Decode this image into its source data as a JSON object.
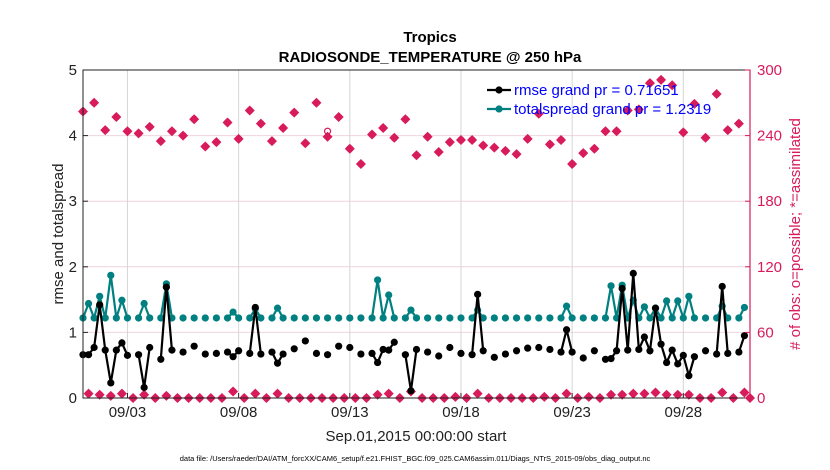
{
  "chart_data": {
    "type": "line",
    "title": "Tropics",
    "subtitle": "RADIOSONDE_TEMPERATURE @ 250 hPa",
    "xlabel": "Sep.01,2015 00:00:00 start",
    "ylabel": "rmse and totalspread",
    "ylabel_right": "# of obs: o=possible; *=assimilated",
    "footer": "data file: /Users/raeder/DAI/ATM_forcXX/CAM6_setup/f.e21.FHIST_BGC.f09_025.CAM6assim.011/Diags_NTrS_2015-09/obs_diag_output.nc",
    "ylim": [
      0,
      5
    ],
    "ylim_right": [
      0,
      300
    ],
    "xlim": [
      "2015-09-01 00:00",
      "2015-10-01 00:00"
    ],
    "yticks": [
      "0",
      "1",
      "2",
      "3",
      "4",
      "5"
    ],
    "yticks_right": [
      "0",
      "60",
      "120",
      "180",
      "240",
      "300"
    ],
    "xticks": [
      {
        "label": "09/03",
        "date": "2015-09-03 00:00"
      },
      {
        "label": "09/08",
        "date": "2015-09-08 00:00"
      },
      {
        "label": "09/13",
        "date": "2015-09-13 00:00"
      },
      {
        "label": "09/18",
        "date": "2015-09-18 00:00"
      },
      {
        "label": "09/23",
        "date": "2015-09-23 00:00"
      },
      {
        "label": "09/28",
        "date": "2015-09-28 00:00"
      }
    ],
    "grid": true,
    "legend_position": "top-right",
    "colors": {
      "rmse": "#000000",
      "totalspread": "#008080",
      "obs": "#d81b5a",
      "legend_text": "#0000ff"
    },
    "x": [
      "09-01 00:00",
      "09-01 06:00",
      "09-01 12:00",
      "09-01 18:00",
      "09-02 00:00",
      "09-02 06:00",
      "09-02 12:00",
      "09-02 18:00",
      "09-03 00:00",
      "09-03 06:00",
      "09-03 12:00",
      "09-03 18:00",
      "09-04 00:00",
      "09-04 06:00",
      "09-04 12:00",
      "09-04 18:00",
      "09-05 00:00",
      "09-05 06:00",
      "09-05 12:00",
      "09-05 18:00",
      "09-06 00:00",
      "09-06 06:00",
      "09-06 12:00",
      "09-06 18:00",
      "09-07 00:00",
      "09-07 06:00",
      "09-07 12:00",
      "09-07 18:00",
      "09-08 00:00",
      "09-08 06:00",
      "09-08 12:00",
      "09-08 18:00",
      "09-09 00:00",
      "09-09 06:00",
      "09-09 12:00",
      "09-09 18:00",
      "09-10 00:00",
      "09-10 06:00",
      "09-10 12:00",
      "09-10 18:00",
      "09-11 00:00",
      "09-11 06:00",
      "09-11 12:00",
      "09-11 18:00",
      "09-12 00:00",
      "09-12 06:00",
      "09-12 12:00",
      "09-12 18:00",
      "09-13 00:00",
      "09-13 06:00",
      "09-13 12:00",
      "09-13 18:00",
      "09-14 00:00",
      "09-14 06:00",
      "09-14 12:00",
      "09-14 18:00",
      "09-15 00:00",
      "09-15 06:00",
      "09-15 12:00",
      "09-15 18:00",
      "09-16 00:00",
      "09-16 06:00",
      "09-16 12:00",
      "09-16 18:00",
      "09-17 00:00",
      "09-17 06:00",
      "09-17 12:00",
      "09-17 18:00",
      "09-18 00:00",
      "09-18 06:00",
      "09-18 12:00",
      "09-18 18:00",
      "09-19 00:00",
      "09-19 06:00",
      "09-19 12:00",
      "09-19 18:00",
      "09-20 00:00",
      "09-20 06:00",
      "09-20 12:00",
      "09-20 18:00",
      "09-21 00:00",
      "09-21 06:00",
      "09-21 12:00",
      "09-21 18:00",
      "09-22 00:00",
      "09-22 06:00",
      "09-22 12:00",
      "09-22 18:00",
      "09-23 00:00",
      "09-23 06:00",
      "09-23 12:00",
      "09-23 18:00",
      "09-24 00:00",
      "09-24 06:00",
      "09-24 12:00",
      "09-24 18:00",
      "09-25 00:00",
      "09-25 06:00",
      "09-25 12:00",
      "09-25 18:00",
      "09-26 00:00",
      "09-26 06:00",
      "09-26 12:00",
      "09-26 18:00",
      "09-27 00:00",
      "09-27 06:00",
      "09-27 12:00",
      "09-27 18:00",
      "09-28 00:00",
      "09-28 06:00",
      "09-28 12:00",
      "09-28 18:00",
      "09-29 00:00",
      "09-29 06:00",
      "09-29 12:00",
      "09-29 18:00",
      "09-30 00:00",
      "09-30 06:00",
      "09-30 12:00",
      "09-30 18:00",
      "10-01 00:00"
    ],
    "series": [
      {
        "name": "rmse grand pr = 0.71651",
        "axis": "left",
        "values": [
          0.66,
          0.66,
          0.77,
          1.42,
          0.73,
          0.23,
          0.73,
          0.84,
          0.65,
          null,
          0.66,
          0.16,
          0.77,
          null,
          0.59,
          1.69,
          0.73,
          null,
          0.7,
          null,
          0.79,
          null,
          0.67,
          null,
          0.68,
          null,
          0.7,
          0.63,
          0.72,
          null,
          0.68,
          1.38,
          0.67,
          null,
          0.7,
          0.53,
          0.67,
          null,
          0.75,
          null,
          0.87,
          null,
          0.68,
          null,
          0.66,
          null,
          0.79,
          null,
          0.77,
          null,
          0.67,
          null,
          0.68,
          0.54,
          0.74,
          0.73,
          0.85,
          null,
          0.66,
          0.11,
          0.74,
          null,
          0.7,
          null,
          0.64,
          null,
          0.77,
          null,
          0.68,
          null,
          0.66,
          1.58,
          0.72,
          null,
          0.62,
          null,
          0.67,
          null,
          0.72,
          null,
          0.76,
          null,
          0.77,
          null,
          0.74,
          null,
          0.7,
          1.04,
          0.7,
          null,
          0.61,
          null,
          0.72,
          null,
          0.59,
          0.6,
          0.72,
          1.67,
          0.73,
          1.9,
          0.74,
          0.93,
          0.72,
          1.37,
          0.82,
          0.54,
          0.73,
          0.52,
          0.65,
          0.34,
          0.63,
          null,
          0.72,
          null,
          0.67,
          1.7,
          0.68,
          null,
          0.7,
          0.95,
          null
        ]
      },
      {
        "name": "totalspread grand pr = 1.2319",
        "axis": "left",
        "values": [
          1.22,
          1.44,
          1.22,
          1.55,
          1.22,
          1.87,
          1.22,
          1.49,
          1.22,
          null,
          1.22,
          1.44,
          1.22,
          null,
          1.22,
          1.74,
          1.22,
          null,
          1.22,
          null,
          1.22,
          null,
          1.22,
          null,
          1.22,
          null,
          1.22,
          1.31,
          1.22,
          null,
          1.22,
          1.36,
          1.22,
          null,
          1.22,
          1.37,
          1.22,
          null,
          1.22,
          null,
          1.22,
          null,
          1.22,
          null,
          1.22,
          null,
          1.22,
          null,
          1.22,
          null,
          1.22,
          null,
          1.22,
          1.8,
          1.22,
          1.57,
          1.22,
          null,
          1.22,
          1.34,
          1.22,
          null,
          1.22,
          null,
          1.22,
          null,
          1.22,
          null,
          1.22,
          null,
          1.22,
          1.34,
          1.22,
          null,
          1.22,
          null,
          1.22,
          null,
          1.22,
          null,
          1.22,
          null,
          1.22,
          null,
          1.22,
          null,
          1.22,
          1.4,
          1.22,
          null,
          1.22,
          null,
          1.22,
          null,
          1.22,
          1.71,
          1.22,
          1.72,
          1.22,
          1.49,
          1.22,
          1.39,
          1.22,
          1.37,
          1.22,
          1.48,
          1.22,
          1.48,
          1.22,
          1.55,
          1.22,
          null,
          1.22,
          null,
          1.22,
          1.4,
          1.22,
          null,
          1.22,
          1.38,
          null
        ]
      },
      {
        "name": "o=possible",
        "axis": "right",
        "values": [
          262,
          4,
          270,
          3,
          245,
          2,
          257,
          4,
          244,
          0,
          242,
          3,
          248,
          0,
          235,
          2,
          244,
          0,
          240,
          0,
          255,
          0,
          230,
          0,
          234,
          0,
          252,
          6,
          237,
          0,
          263,
          4,
          251,
          0,
          235,
          4,
          247,
          0,
          261,
          0,
          233,
          0,
          270,
          0,
          244,
          0,
          257,
          0,
          228,
          0,
          214,
          0,
          241,
          3,
          247,
          4,
          238,
          0,
          255,
          6,
          222,
          0,
          239,
          0,
          225,
          0,
          234,
          1,
          236,
          0,
          236,
          4,
          231,
          0,
          229,
          0,
          226,
          0,
          223,
          0,
          237,
          0,
          260,
          1,
          232,
          0,
          236,
          4,
          214,
          0,
          224,
          1,
          228,
          0,
          244,
          3,
          244,
          3,
          263,
          4,
          264,
          4,
          288,
          5,
          291,
          3,
          286,
          3,
          243,
          3,
          269,
          0,
          238,
          0,
          278,
          5,
          245,
          0,
          251,
          5,
          0
        ]
      },
      {
        "name": "*=assimilated",
        "axis": "right",
        "values": [
          262,
          4,
          270,
          3,
          245,
          2,
          257,
          4,
          244,
          0,
          242,
          3,
          248,
          0,
          235,
          2,
          244,
          0,
          240,
          0,
          255,
          0,
          230,
          0,
          234,
          0,
          252,
          6,
          237,
          0,
          263,
          4,
          251,
          0,
          235,
          4,
          247,
          0,
          261,
          0,
          233,
          0,
          270,
          0,
          239,
          0,
          257,
          0,
          228,
          0,
          214,
          0,
          241,
          3,
          247,
          4,
          238,
          0,
          255,
          6,
          222,
          0,
          239,
          0,
          225,
          0,
          234,
          1,
          236,
          0,
          236,
          4,
          231,
          0,
          229,
          0,
          226,
          0,
          223,
          0,
          237,
          0,
          260,
          1,
          232,
          0,
          236,
          4,
          214,
          0,
          224,
          1,
          228,
          0,
          244,
          3,
          244,
          3,
          263,
          4,
          264,
          4,
          288,
          5,
          291,
          3,
          286,
          3,
          243,
          3,
          269,
          0,
          238,
          0,
          278,
          5,
          245,
          0,
          251,
          5,
          0
        ]
      }
    ]
  }
}
